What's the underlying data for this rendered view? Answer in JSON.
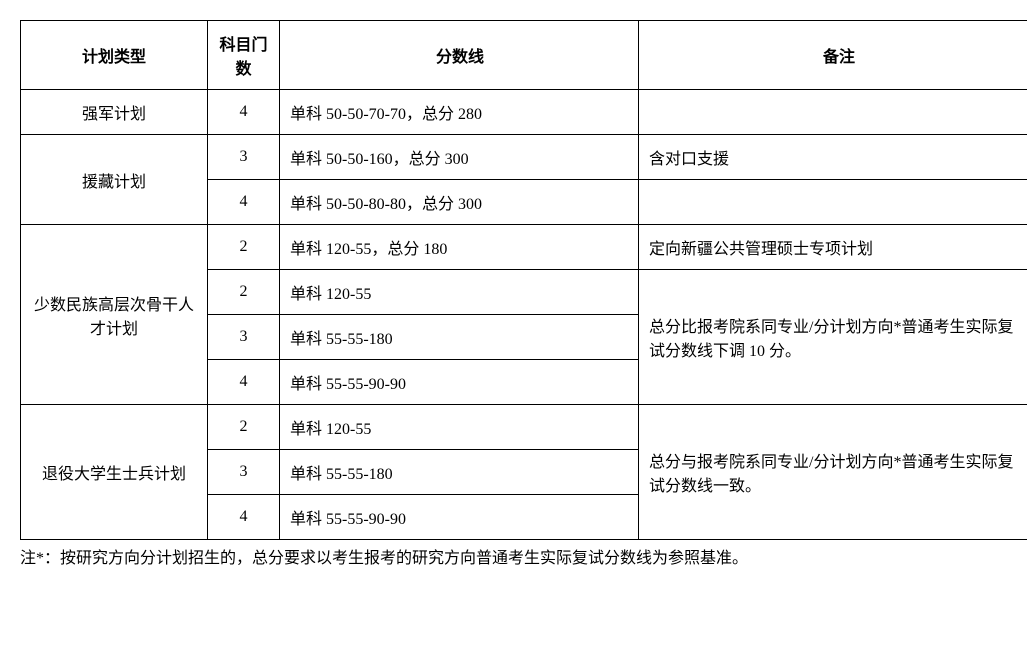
{
  "headers": {
    "type": "计划类型",
    "subject": "科目门数",
    "score": "分数线",
    "note": "备注"
  },
  "rows": {
    "r1": {
      "type": "强军计划",
      "subject": "4",
      "score": "单科 50-50-70-70，总分 280",
      "note": ""
    },
    "r2": {
      "type": "援藏计划",
      "subject1": "3",
      "score1": "单科 50-50-160，总分 300",
      "note1": "含对口支援",
      "subject2": "4",
      "score2": "单科 50-50-80-80，总分 300",
      "note2": ""
    },
    "r3": {
      "type": "少数民族高层次骨干人才计划",
      "subject1": "2",
      "score1": "单科 120-55，总分 180",
      "note1": "定向新疆公共管理硕士专项计划",
      "subject2": "2",
      "score2": "单科 120-55",
      "note2": "总分比报考院系同专业/分计划方向*普通考生实际复试分数线下调 10 分。",
      "subject3": "3",
      "score3": "单科 55-55-180",
      "subject4": "4",
      "score4": "单科 55-55-90-90"
    },
    "r4": {
      "type": "退役大学生士兵计划",
      "subject1": "2",
      "score1": "单科 120-55",
      "note1": "总分与报考院系同专业/分计划方向*普通考生实际复试分数线一致。",
      "subject2": "3",
      "score2": "单科 55-55-180",
      "subject3": "4",
      "score3": "单科 55-55-90-90"
    }
  },
  "footnote": "注*：按研究方向分计划招生的，总分要求以考生报考的研究方向普通考生实际复试分数线为参照基准。"
}
